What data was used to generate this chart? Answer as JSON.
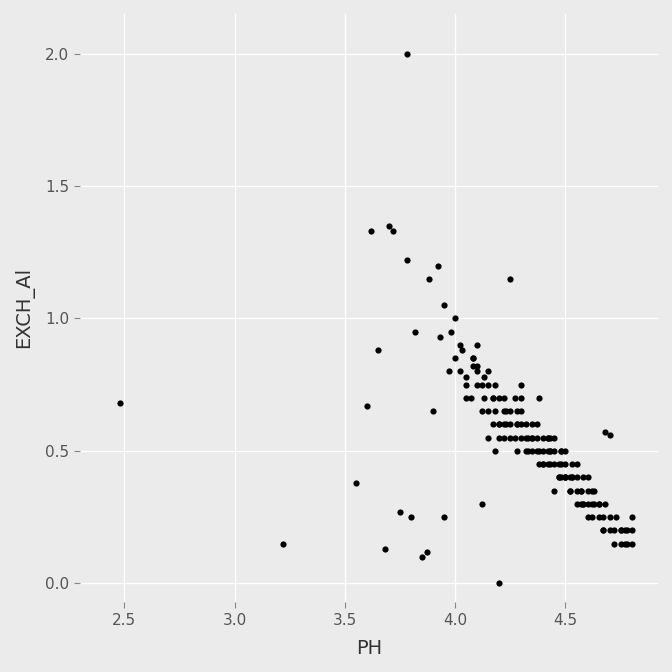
{
  "title": "",
  "xlabel": "PH",
  "ylabel": "EXCH_Al",
  "background_color": "#EBEBEB",
  "grid_color": "#FFFFFF",
  "point_color": "#000000",
  "point_size": 20,
  "xlim": [
    2.3,
    4.92
  ],
  "ylim": [
    -0.07,
    2.15
  ],
  "xticks": [
    2.5,
    3.0,
    3.5,
    4.0,
    4.5
  ],
  "yticks": [
    0.0,
    0.5,
    1.0,
    1.5,
    2.0
  ],
  "x": [
    2.48,
    3.22,
    3.55,
    3.6,
    3.62,
    3.65,
    3.68,
    3.7,
    3.72,
    3.75,
    3.78,
    3.8,
    3.82,
    3.85,
    3.87,
    3.88,
    3.9,
    3.92,
    3.93,
    3.95,
    3.97,
    3.98,
    4.0,
    4.0,
    4.02,
    4.02,
    4.03,
    4.05,
    4.05,
    4.07,
    4.08,
    4.08,
    4.1,
    4.1,
    4.1,
    4.12,
    4.12,
    4.13,
    4.13,
    4.15,
    4.15,
    4.15,
    4.17,
    4.17,
    4.18,
    4.18,
    4.2,
    4.2,
    4.2,
    4.22,
    4.22,
    4.22,
    4.23,
    4.23,
    4.25,
    4.25,
    4.25,
    4.27,
    4.27,
    4.28,
    4.28,
    4.28,
    4.3,
    4.3,
    4.3,
    4.3,
    4.32,
    4.32,
    4.33,
    4.33,
    4.35,
    4.35,
    4.35,
    4.37,
    4.37,
    4.38,
    4.38,
    4.4,
    4.4,
    4.4,
    4.42,
    4.42,
    4.42,
    4.43,
    4.43,
    4.43,
    4.45,
    4.45,
    4.45,
    4.47,
    4.47,
    4.48,
    4.48,
    4.48,
    4.5,
    4.5,
    4.5,
    4.5,
    4.52,
    4.52,
    4.53,
    4.53,
    4.55,
    4.55,
    4.55,
    4.57,
    4.57,
    4.58,
    4.58,
    4.6,
    4.6,
    4.6,
    4.62,
    4.62,
    4.63,
    4.63,
    4.65,
    4.65,
    4.67,
    4.67,
    4.68,
    4.7,
    4.7,
    4.72,
    4.72,
    4.73,
    4.75,
    4.75,
    4.75,
    4.77,
    4.77,
    4.78,
    4.78,
    4.8,
    4.8,
    4.8,
    3.78,
    3.95,
    4.05,
    4.08,
    4.1,
    4.12,
    4.15,
    4.17,
    4.18,
    4.2,
    4.22,
    4.25,
    4.28,
    4.3,
    4.32,
    4.35,
    4.37,
    4.38,
    4.4,
    4.42,
    4.43,
    4.45,
    4.47,
    4.48,
    4.5,
    4.52,
    4.53,
    4.55,
    4.57,
    4.58,
    4.6,
    4.62,
    4.65,
    4.67,
    4.68,
    4.7,
    4.2
  ],
  "y": [
    0.68,
    0.15,
    0.38,
    0.67,
    1.33,
    0.88,
    0.13,
    1.35,
    1.33,
    0.27,
    2.0,
    0.25,
    0.95,
    0.1,
    0.12,
    1.15,
    0.65,
    1.2,
    0.93,
    1.05,
    0.8,
    0.95,
    0.85,
    1.0,
    0.9,
    0.8,
    0.88,
    0.75,
    0.7,
    0.7,
    0.82,
    0.85,
    0.75,
    0.8,
    0.9,
    0.75,
    0.65,
    0.7,
    0.78,
    0.8,
    0.65,
    0.75,
    0.6,
    0.7,
    0.75,
    0.65,
    0.6,
    0.55,
    0.7,
    0.65,
    0.6,
    0.55,
    0.6,
    0.65,
    0.55,
    0.6,
    0.65,
    0.7,
    0.55,
    0.6,
    0.65,
    0.5,
    0.6,
    0.55,
    0.65,
    0.7,
    0.55,
    0.6,
    0.5,
    0.55,
    0.5,
    0.55,
    0.6,
    0.5,
    0.55,
    0.45,
    0.5,
    0.55,
    0.5,
    0.45,
    0.5,
    0.55,
    0.45,
    0.5,
    0.45,
    0.55,
    0.45,
    0.5,
    0.55,
    0.4,
    0.45,
    0.5,
    0.45,
    0.4,
    0.4,
    0.45,
    0.5,
    0.4,
    0.35,
    0.4,
    0.45,
    0.4,
    0.35,
    0.4,
    0.45,
    0.3,
    0.35,
    0.4,
    0.3,
    0.35,
    0.4,
    0.3,
    0.25,
    0.3,
    0.35,
    0.3,
    0.25,
    0.3,
    0.2,
    0.25,
    0.3,
    0.2,
    0.25,
    0.15,
    0.2,
    0.25,
    0.2,
    0.15,
    0.2,
    0.15,
    0.2,
    0.15,
    0.2,
    0.15,
    0.2,
    0.25,
    1.22,
    0.25,
    0.78,
    0.85,
    0.82,
    0.3,
    0.55,
    0.7,
    0.5,
    0.6,
    0.7,
    1.15,
    0.6,
    0.75,
    0.5,
    0.55,
    0.6,
    0.7,
    0.45,
    0.55,
    0.5,
    0.35,
    0.4,
    0.5,
    0.4,
    0.35,
    0.4,
    0.3,
    0.35,
    0.3,
    0.25,
    0.35,
    0.3,
    0.2,
    0.57,
    0.56,
    0.0
  ]
}
